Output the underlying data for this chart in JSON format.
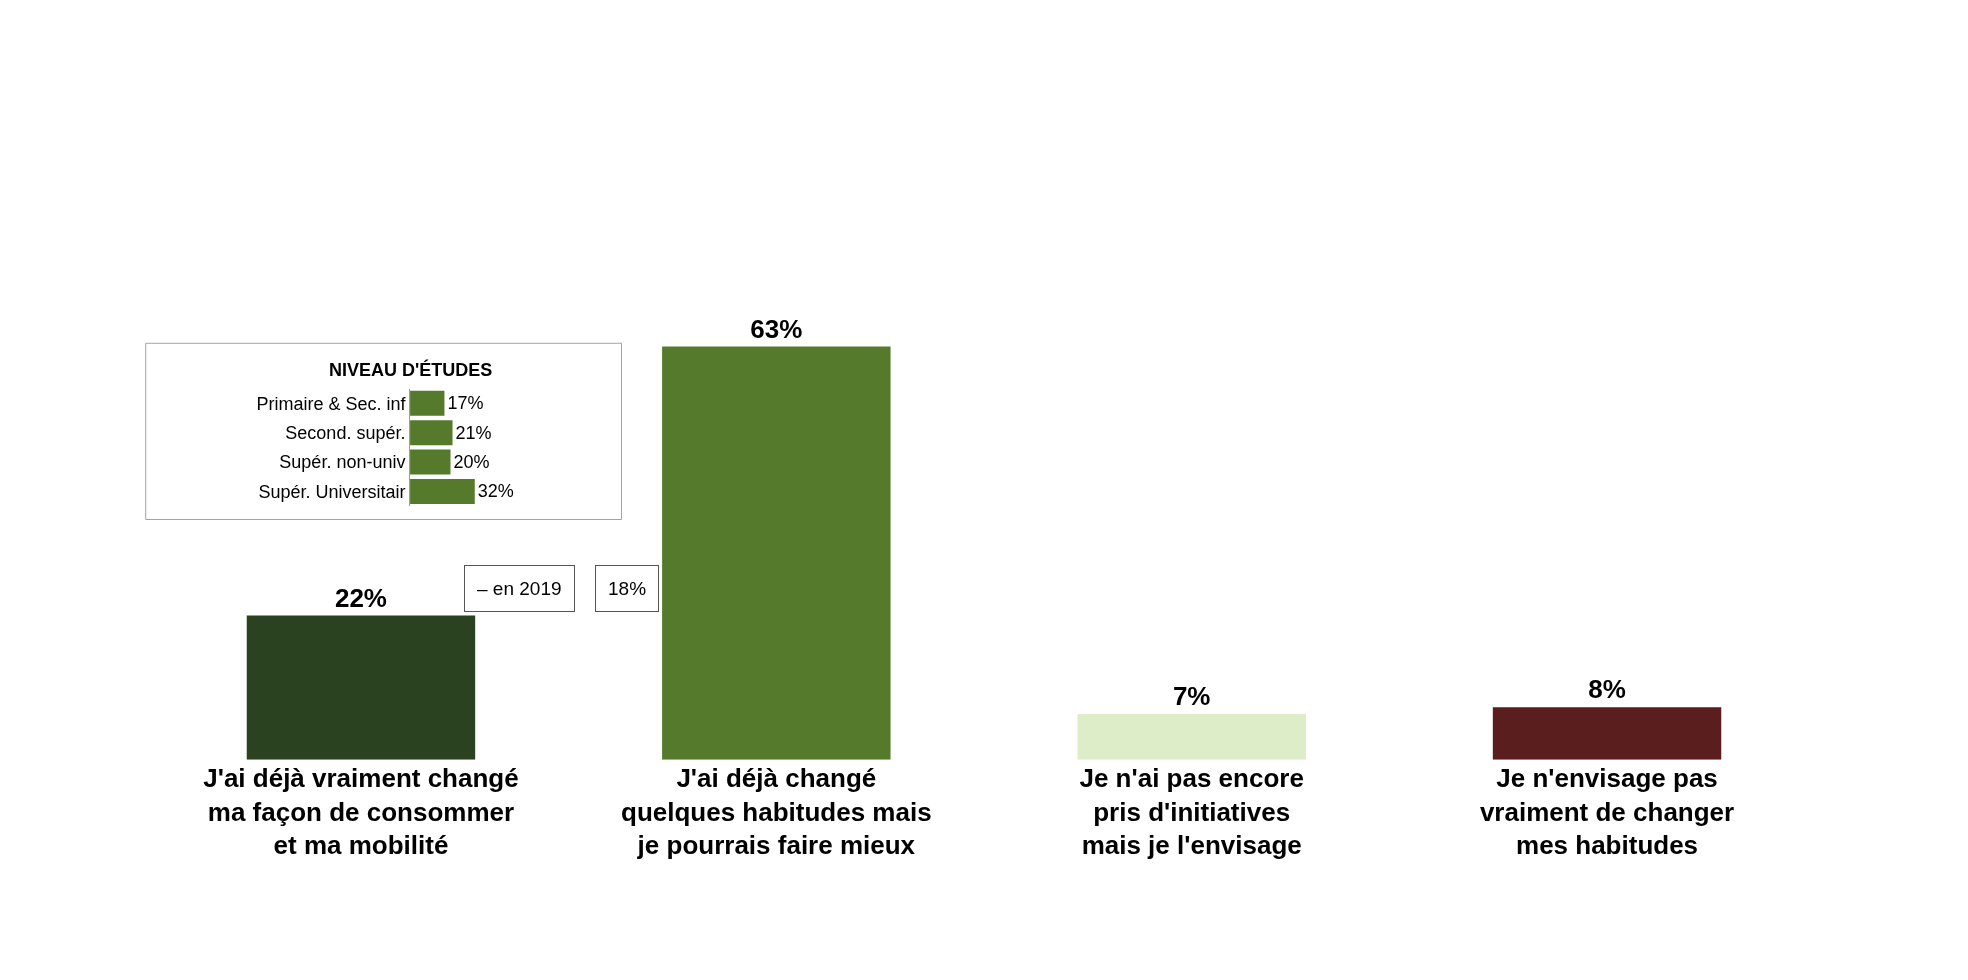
{
  "chart_data": [
    {
      "type": "bar",
      "categories": [
        "J'ai déjà vraiment changé\nma façon de consommer\net ma mobilité",
        "J'ai déjà changé\nquelques habitudes mais\nje pourrais faire mieux",
        "Je n'ai pas encore\npris d'initiatives\nmais je l'envisage",
        "Je n'envisage pas\nvraiment de changer\nmes habitudes"
      ],
      "values": [
        22,
        63,
        7,
        8
      ],
      "value_labels": [
        "22%",
        "63%",
        "7%",
        "8%"
      ],
      "colors": [
        "#2b4220",
        "#557a2c",
        "#dcedc8",
        "#5a1e1e"
      ],
      "tick_labels": "x",
      "annotations": [
        "– en 2019",
        "18%"
      ]
    },
    {
      "type": "bar",
      "orientation": "horizontal",
      "title": "NIVEAU D'ÉTUDES",
      "categories": [
        "Primaire & Sec. inf",
        "Second. supér.",
        "Supér. non-univ",
        "Supér. Universitair"
      ],
      "values": [
        17,
        21,
        20,
        32
      ],
      "value_labels": [
        "17%",
        "21%",
        "20%",
        "32%"
      ],
      "color": "#557a2c",
      "tick_labels": "y"
    }
  ]
}
